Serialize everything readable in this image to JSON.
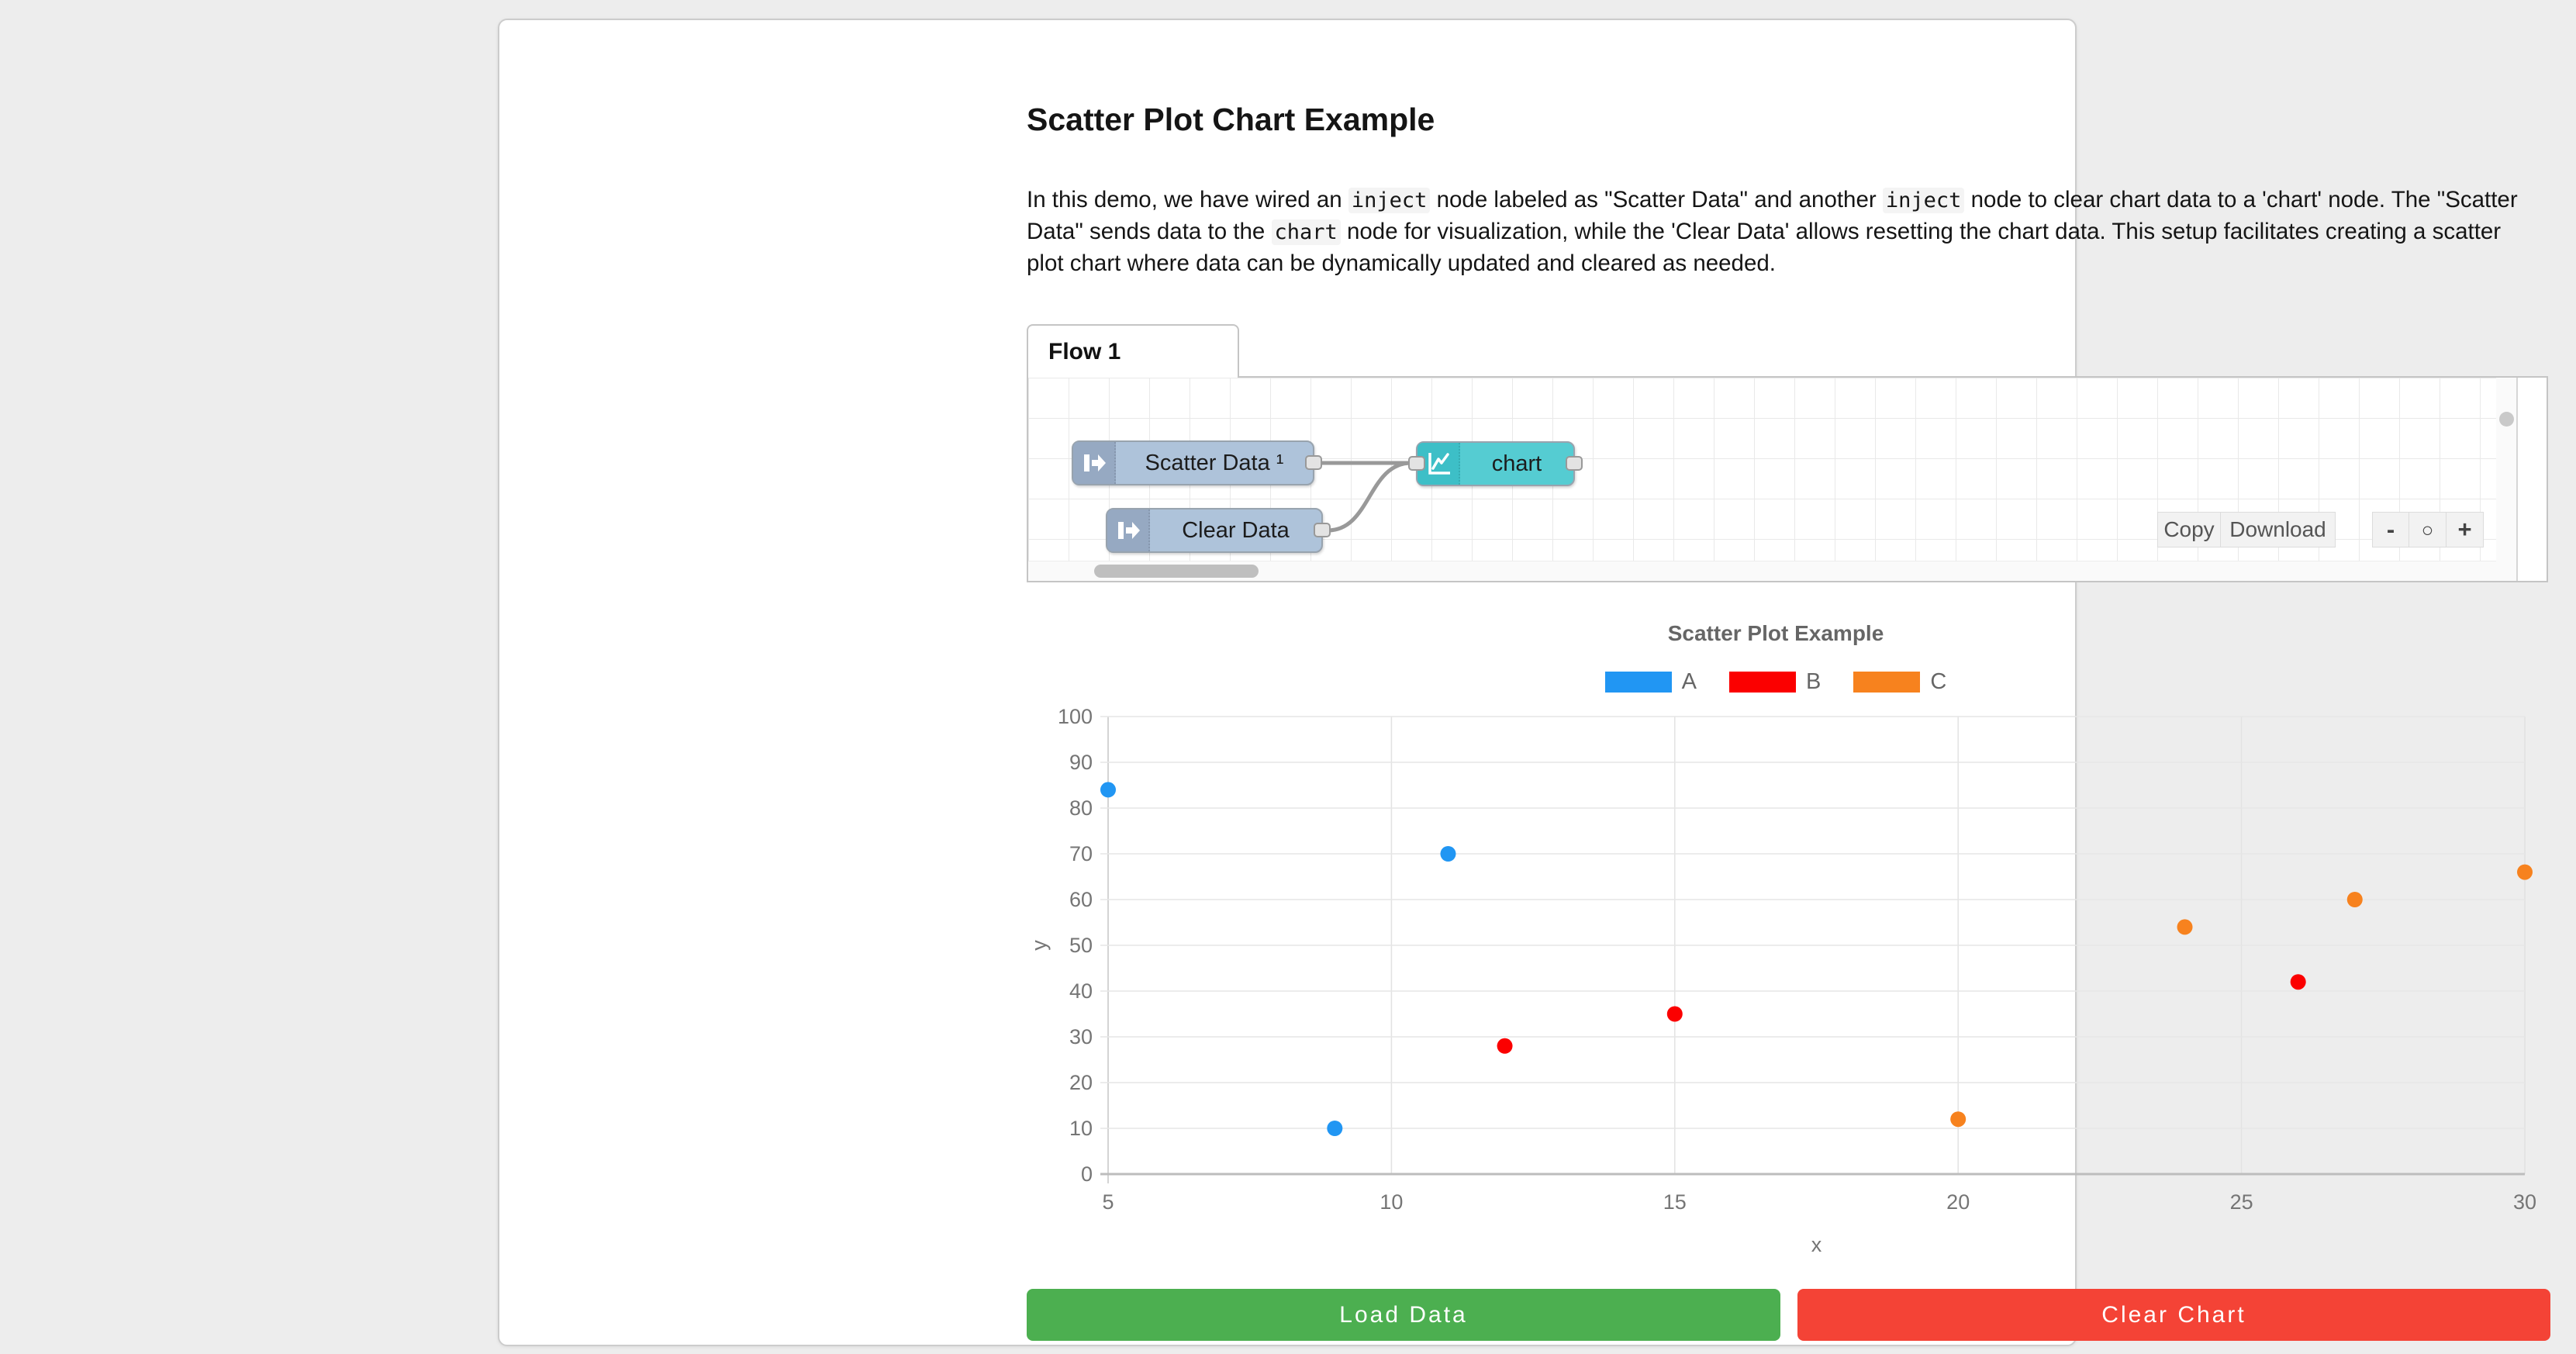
{
  "page": {
    "title": "Scatter Plot Chart Example"
  },
  "intro": {
    "p1": "In this demo, we have wired an ",
    "c1": "inject",
    "p2": " node labeled as \"Scatter Data\" and another ",
    "c2": "inject",
    "p3": " node to clear chart data to a 'chart' node. The \"Scatter Data\" sends data to the ",
    "c3": "chart",
    "p4": " node for visualization, while the 'Clear Data' allows resetting the chart data. This setup facilitates creating a scatter plot chart where data can be dynamically updated and cleared as needed."
  },
  "flow": {
    "tab_label": "Flow 1",
    "nodes": {
      "inject1_label": "Scatter Data ¹",
      "inject2_label": "Clear Data",
      "chart_label": "chart"
    },
    "toolbar": {
      "copy": "Copy",
      "download": "Download",
      "zoom_out": "-",
      "zoom_reset": "○",
      "zoom_in": "+"
    }
  },
  "chart_data": {
    "type": "scatter",
    "title": "Scatter Plot Example",
    "xlabel": "x",
    "ylabel": "y",
    "xlim": [
      5,
      30
    ],
    "ylim": [
      0,
      100
    ],
    "x_ticks": [
      5,
      10,
      15,
      20,
      25,
      30
    ],
    "y_ticks": [
      0,
      10,
      20,
      30,
      40,
      50,
      60,
      70,
      80,
      90,
      100
    ],
    "grid": true,
    "legend_position": "top",
    "series": [
      {
        "name": "A",
        "color": "#2196f3",
        "points": [
          [
            5,
            84
          ],
          [
            9,
            10
          ],
          [
            11,
            70
          ]
        ]
      },
      {
        "name": "B",
        "color": "#fb0000",
        "points": [
          [
            12,
            28
          ],
          [
            15,
            35
          ],
          [
            26,
            42
          ]
        ]
      },
      {
        "name": "C",
        "color": "#f7821e",
        "points": [
          [
            20,
            12
          ],
          [
            24,
            54
          ],
          [
            27,
            60
          ],
          [
            30,
            66
          ]
        ]
      }
    ]
  },
  "actions": {
    "load": "Load Data",
    "clear": "Clear Chart"
  },
  "colors": {
    "series_a": "#2196f3",
    "series_b": "#fb0000",
    "series_c": "#f7821e",
    "load_button": "#4caf50",
    "clear_button": "#f44336",
    "inject_node_body": "#aec3da",
    "chart_node_body": "#55ccd2",
    "wire": "#999999"
  }
}
